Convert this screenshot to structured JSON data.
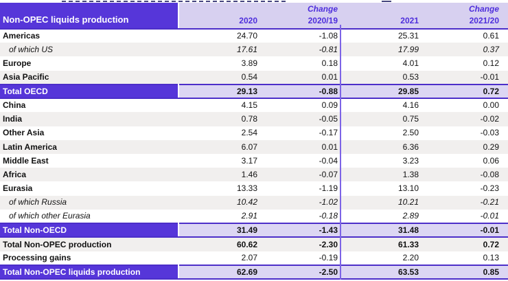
{
  "table": {
    "header": {
      "label": "Non-OPEC liquids production",
      "columns": [
        {
          "line1": "",
          "line2": "2020"
        },
        {
          "line1": "Change",
          "line2": "2020/19"
        },
        {
          "line1": "",
          "line2": "2021"
        },
        {
          "line1": "Change",
          "line2": "2021/20"
        }
      ]
    },
    "rows": [
      {
        "label": "Americas",
        "values": [
          "24.70",
          "-1.08",
          "25.31",
          "0.61"
        ],
        "style": "plain",
        "bg": "white"
      },
      {
        "label": "of which US",
        "values": [
          "17.61",
          "-0.81",
          "17.99",
          "0.37"
        ],
        "style": "italic",
        "bg": "gray"
      },
      {
        "label": "Europe",
        "values": [
          "3.89",
          "0.18",
          "4.01",
          "0.12"
        ],
        "style": "plain",
        "bg": "white"
      },
      {
        "label": "Asia Pacific",
        "values": [
          "0.54",
          "0.01",
          "0.53",
          "-0.01"
        ],
        "style": "plain",
        "bg": "gray"
      },
      {
        "label": "Total OECD",
        "values": [
          "29.13",
          "-0.88",
          "29.85",
          "0.72"
        ],
        "style": "total",
        "bg": "total"
      },
      {
        "label": "China",
        "values": [
          "4.15",
          "0.09",
          "4.16",
          "0.00"
        ],
        "style": "plain",
        "bg": "white"
      },
      {
        "label": "India",
        "values": [
          "0.78",
          "-0.05",
          "0.75",
          "-0.02"
        ],
        "style": "plain",
        "bg": "gray"
      },
      {
        "label": "Other Asia",
        "values": [
          "2.54",
          "-0.17",
          "2.50",
          "-0.03"
        ],
        "style": "plain",
        "bg": "white"
      },
      {
        "label": "Latin America",
        "values": [
          "6.07",
          "0.01",
          "6.36",
          "0.29"
        ],
        "style": "plain",
        "bg": "gray"
      },
      {
        "label": "Middle East",
        "values": [
          "3.17",
          "-0.04",
          "3.23",
          "0.06"
        ],
        "style": "plain",
        "bg": "white"
      },
      {
        "label": "Africa",
        "values": [
          "1.46",
          "-0.07",
          "1.38",
          "-0.08"
        ],
        "style": "plain",
        "bg": "gray"
      },
      {
        "label": "Eurasia",
        "values": [
          "13.33",
          "-1.19",
          "13.10",
          "-0.23"
        ],
        "style": "plain",
        "bg": "white"
      },
      {
        "label": "of which Russia",
        "values": [
          "10.42",
          "-1.02",
          "10.21",
          "-0.21"
        ],
        "style": "italic",
        "bg": "gray"
      },
      {
        "label": "of which other Eurasia",
        "values": [
          "2.91",
          "-0.18",
          "2.89",
          "-0.01"
        ],
        "style": "italic",
        "bg": "white"
      },
      {
        "label": "Total Non-OECD",
        "values": [
          "31.49",
          "-1.43",
          "31.48",
          "-0.01"
        ],
        "style": "total",
        "bg": "total"
      },
      {
        "label": "Total Non-OPEC production",
        "values": [
          "60.62",
          "-2.30",
          "61.33",
          "0.72"
        ],
        "style": "bold",
        "bg": "gray"
      },
      {
        "label": "Processing gains",
        "values": [
          "2.07",
          "-0.19",
          "2.20",
          "0.13"
        ],
        "style": "plain",
        "bg": "white"
      },
      {
        "label": "Total Non-OPEC liquids production",
        "values": [
          "62.69",
          "-2.50",
          "63.53",
          "0.85"
        ],
        "style": "total",
        "bg": "total"
      }
    ]
  },
  "colors": {
    "header_purple": "#5636d9",
    "total_purple": "#5636d9",
    "header_lavender": "#d7d0f0",
    "lavender_totals": "#dcd6f3",
    "row_gray": "#f1efee",
    "line_purple": "#4c2ec9",
    "divider_purple": "#7c63e6",
    "header_text": "#4e2edc"
  }
}
